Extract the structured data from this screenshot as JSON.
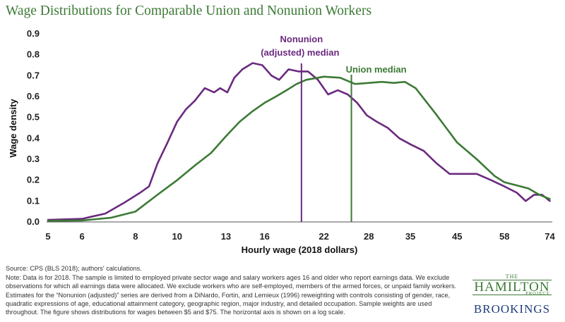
{
  "title": "Wage Distributions for Comparable Union and Nonunion Workers",
  "chart_data": {
    "type": "line",
    "xlabel": "Hourly wage (2018 dollars)",
    "ylabel": "Wage density",
    "x_scale": "log",
    "xlim": [
      5,
      75
    ],
    "ylim": [
      0,
      0.9
    ],
    "x_ticks": [
      "5",
      "6",
      "8",
      "10",
      "13",
      "16",
      "22",
      "28",
      "35",
      "45",
      "58",
      "74"
    ],
    "y_ticks": [
      "0.0",
      "0.1",
      "0.2",
      "0.3",
      "0.4",
      "0.5",
      "0.6",
      "0.7",
      "0.8",
      "0.9"
    ],
    "series": [
      {
        "name": "Nonunion (adjusted)",
        "color": "#6b2a7f",
        "x": [
          5,
          6,
          6.8,
          7.5,
          8.2,
          8.6,
          9.0,
          9.5,
          10,
          10.5,
          11,
          11.6,
          12.2,
          12.6,
          13.1,
          13.6,
          14.2,
          15,
          15.8,
          16.6,
          17.3,
          18.2,
          19.2,
          20.2,
          21.3,
          22.5,
          23.7,
          25,
          26.3,
          27.7,
          29.2,
          31,
          33,
          35.1,
          37.6,
          40.3,
          43.2,
          46.5,
          50,
          54,
          58,
          62,
          65,
          68,
          71,
          74
        ],
        "y": [
          0.01,
          0.015,
          0.04,
          0.09,
          0.14,
          0.17,
          0.28,
          0.38,
          0.48,
          0.54,
          0.58,
          0.64,
          0.62,
          0.64,
          0.62,
          0.69,
          0.73,
          0.76,
          0.75,
          0.7,
          0.68,
          0.73,
          0.72,
          0.72,
          0.68,
          0.61,
          0.63,
          0.61,
          0.57,
          0.51,
          0.48,
          0.45,
          0.4,
          0.37,
          0.34,
          0.28,
          0.23,
          0.23,
          0.23,
          0.2,
          0.17,
          0.14,
          0.1,
          0.13,
          0.13,
          0.1
        ]
      },
      {
        "name": "Union",
        "color": "#3c7a35",
        "x": [
          5,
          6,
          7,
          8,
          9,
          10,
          11,
          12,
          13,
          14,
          15,
          16,
          17,
          18,
          19,
          20,
          22,
          24,
          26,
          28,
          30,
          32,
          34,
          36,
          40,
          45,
          50,
          55,
          58,
          62,
          66,
          70,
          74
        ],
        "y": [
          0.005,
          0.007,
          0.02,
          0.05,
          0.13,
          0.2,
          0.27,
          0.33,
          0.41,
          0.48,
          0.53,
          0.57,
          0.6,
          0.63,
          0.66,
          0.68,
          0.695,
          0.69,
          0.66,
          0.665,
          0.67,
          0.665,
          0.67,
          0.64,
          0.52,
          0.38,
          0.3,
          0.22,
          0.19,
          0.175,
          0.16,
          0.13,
          0.11
        ]
      }
    ],
    "annotations": [
      {
        "label_line1": "Nonunion",
        "label_line2": "(adjusted)  median",
        "x": 19.5,
        "color": "#6b2a7f"
      },
      {
        "label_line1": "Union median",
        "label_line2": "",
        "x": 25.5,
        "color": "#3c7a35"
      }
    ]
  },
  "source": "Source: CPS (BLS 2018); authors' calculations.",
  "note": "Note: Data is for 2018. The sample is limited to employed private sector wage and salary workers ages 16 and older who report earnings data. We exclude observations for which all earnings data were allocated. We exclude workers who are self-employed, members of the armed forces, or unpaid family workers. Estimates for the “Nonunion (adjusted)” series are derived from a DiNardo, Fortin, and Lemieux (1996) reweighting with controls consisting of gender, race, quadratic expressions of age, educational attainment category, geographic region, major industry, and detailed occupation. Sample weights are used throughout. The figure shows distributions for wages between $5 and $75. The horizontal axis is shown on a log scale.",
  "logo": {
    "the": "THE",
    "hamilton": "HAMILTON",
    "project": "PROJECT",
    "brookings": "BROOKINGS"
  }
}
